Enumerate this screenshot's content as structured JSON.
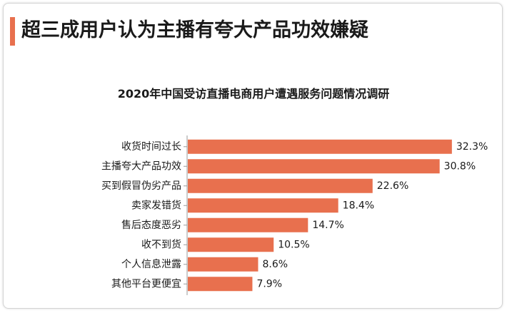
{
  "headline": "超三成用户认为主播有夸大产品功效嫌疑",
  "colors": {
    "accent": "#e8704e",
    "bar": "#e8704e",
    "axis": "#9a9a9a"
  },
  "chart_data": {
    "type": "bar",
    "orientation": "horizontal",
    "title": "2020年中国受访直播电商用户遭遇服务问题情况调研",
    "categories": [
      "收货时间过长",
      "主播夸大产品功效",
      "买到假冒伪劣产品",
      "卖家发错货",
      "售后态度恶劣",
      "收不到货",
      "个人信息泄露",
      "其他平台更便宜"
    ],
    "values": [
      32.3,
      30.8,
      22.6,
      18.4,
      14.7,
      10.5,
      8.6,
      7.9
    ],
    "value_labels": [
      "32.3%",
      "30.8%",
      "22.6%",
      "18.4%",
      "14.7%",
      "10.5%",
      "8.6%",
      "7.9%"
    ],
    "xlabel": "",
    "ylabel": "",
    "grid": false,
    "legend": "none"
  }
}
